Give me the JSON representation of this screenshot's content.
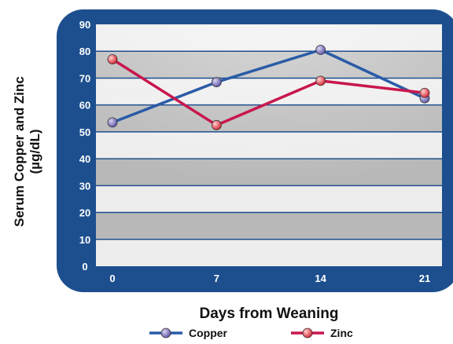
{
  "chart_data": {
    "type": "line",
    "xlabel": "Days from Weaning",
    "ylabel_line1": "Serum Copper and Zinc",
    "ylabel_line2": "(µg/dL)",
    "categories": [
      "0",
      "7",
      "14",
      "21"
    ],
    "ylim": [
      0,
      90
    ],
    "yticks": [
      "0",
      "10",
      "20",
      "30",
      "40",
      "50",
      "60",
      "70",
      "80",
      "90"
    ],
    "grid": true,
    "legend_position": "bottom",
    "series": [
      {
        "name": "Copper",
        "values": [
          53.5,
          68.5,
          80.5,
          62.5
        ],
        "color": "#2a5ba6",
        "marker_color": "#6a5fb0"
      },
      {
        "name": "Zinc",
        "values": [
          77,
          52.5,
          69,
          64.5
        ],
        "color": "#c8174c",
        "marker_color": "#e02a3a"
      }
    ],
    "colors": {
      "frame": "#1d4f8f",
      "band_dark": "#b8b8b8",
      "band_light": "#ededed"
    }
  }
}
